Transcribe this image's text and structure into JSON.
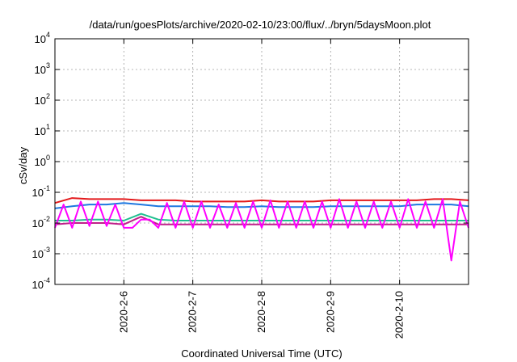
{
  "chart_data": {
    "type": "line",
    "title": "/data/run/goesPlots/archive/2020-02-10/23:00/flux/../bryn/5daysMoon.plot",
    "xlabel": "Coordinated Universal Time (UTC)",
    "ylabel": "cSv/day",
    "yscale": "log",
    "ylim": [
      0.0001,
      10000
    ],
    "ytick_values": [
      0.0001,
      0.001,
      0.01,
      0.1,
      1,
      10,
      100,
      1000,
      10000
    ],
    "ytick_labels": [
      {
        "base": "10",
        "exp": "-4"
      },
      {
        "base": "10",
        "exp": "-3"
      },
      {
        "base": "10",
        "exp": "-2"
      },
      {
        "base": "10",
        "exp": "-1"
      },
      {
        "base": "10",
        "exp": "0"
      },
      {
        "base": "10",
        "exp": "1"
      },
      {
        "base": "10",
        "exp": "2"
      },
      {
        "base": "10",
        "exp": "3"
      },
      {
        "base": "10",
        "exp": "4"
      }
    ],
    "xlim": [
      "2020-02-05T00:00",
      "2020-02-11T00:00"
    ],
    "xticks": [
      {
        "x": "2020-02-06T00:00",
        "label": "2020-2-6"
      },
      {
        "x": "2020-02-07T00:00",
        "label": "2020-2-7"
      },
      {
        "x": "2020-02-08T00:00",
        "label": "2020-2-8"
      },
      {
        "x": "2020-02-09T00:00",
        "label": "2020-2-9"
      },
      {
        "x": "2020-02-10T00:00",
        "label": "2020-2-10"
      }
    ],
    "grid": true,
    "colors": {
      "axis": "#000000",
      "grid": "#a0a0a0"
    },
    "series": [
      {
        "color": "#e31a1c",
        "x": [
          "2020-02-05T00:00",
          "2020-02-05T06:00",
          "2020-02-05T12:00",
          "2020-02-05T18:00",
          "2020-02-06T00:00",
          "2020-02-06T06:00",
          "2020-02-06T12:00",
          "2020-02-06T18:00",
          "2020-02-07T00:00",
          "2020-02-07T06:00",
          "2020-02-07T12:00",
          "2020-02-07T18:00",
          "2020-02-08T00:00",
          "2020-02-08T06:00",
          "2020-02-08T12:00",
          "2020-02-08T18:00",
          "2020-02-09T00:00",
          "2020-02-09T06:00",
          "2020-02-09T12:00",
          "2020-02-09T18:00",
          "2020-02-10T00:00",
          "2020-02-10T06:00",
          "2020-02-10T12:00",
          "2020-02-10T18:00",
          "2020-02-11T00:00"
        ],
        "y": [
          0.045,
          0.065,
          0.06,
          0.06,
          0.06,
          0.055,
          0.055,
          0.055,
          0.05,
          0.05,
          0.05,
          0.05,
          0.055,
          0.05,
          0.05,
          0.05,
          0.055,
          0.055,
          0.055,
          0.055,
          0.055,
          0.055,
          0.06,
          0.06,
          0.055
        ]
      },
      {
        "color": "#1f78e0",
        "x": [
          "2020-02-05T00:00",
          "2020-02-05T06:00",
          "2020-02-05T12:00",
          "2020-02-05T18:00",
          "2020-02-06T00:00",
          "2020-02-06T06:00",
          "2020-02-06T12:00",
          "2020-02-06T18:00",
          "2020-02-07T00:00",
          "2020-02-07T06:00",
          "2020-02-07T12:00",
          "2020-02-07T18:00",
          "2020-02-08T00:00",
          "2020-02-08T06:00",
          "2020-02-08T12:00",
          "2020-02-08T18:00",
          "2020-02-09T00:00",
          "2020-02-09T06:00",
          "2020-02-09T12:00",
          "2020-02-09T18:00",
          "2020-02-10T00:00",
          "2020-02-10T06:00",
          "2020-02-10T12:00",
          "2020-02-10T18:00",
          "2020-02-11T00:00"
        ],
        "y": [
          0.03,
          0.035,
          0.04,
          0.04,
          0.045,
          0.04,
          0.035,
          0.035,
          0.035,
          0.035,
          0.033,
          0.033,
          0.035,
          0.033,
          0.033,
          0.033,
          0.035,
          0.035,
          0.035,
          0.035,
          0.035,
          0.04,
          0.04,
          0.04,
          0.035
        ]
      },
      {
        "color": "#1fbf8f",
        "x": [
          "2020-02-05T00:00",
          "2020-02-05T06:00",
          "2020-02-05T12:00",
          "2020-02-05T18:00",
          "2020-02-06T00:00",
          "2020-02-06T06:00",
          "2020-02-06T12:00",
          "2020-02-06T18:00",
          "2020-02-07T00:00",
          "2020-02-07T06:00",
          "2020-02-07T12:00",
          "2020-02-07T18:00",
          "2020-02-08T00:00",
          "2020-02-08T06:00",
          "2020-02-08T12:00",
          "2020-02-08T18:00",
          "2020-02-09T00:00",
          "2020-02-09T06:00",
          "2020-02-09T12:00",
          "2020-02-09T18:00",
          "2020-02-10T00:00",
          "2020-02-10T06:00",
          "2020-02-10T12:00",
          "2020-02-10T18:00",
          "2020-02-11T00:00"
        ],
        "y": [
          0.012,
          0.012,
          0.013,
          0.013,
          0.012,
          0.02,
          0.013,
          0.012,
          0.012,
          0.012,
          0.012,
          0.012,
          0.012,
          0.012,
          0.012,
          0.012,
          0.012,
          0.012,
          0.012,
          0.012,
          0.012,
          0.012,
          0.012,
          0.012,
          0.012
        ]
      },
      {
        "color": "#c0208a",
        "x": [
          "2020-02-05T00:00",
          "2020-02-05T06:00",
          "2020-02-05T12:00",
          "2020-02-05T18:00",
          "2020-02-06T00:00",
          "2020-02-06T06:00",
          "2020-02-06T12:00",
          "2020-02-06T18:00",
          "2020-02-07T00:00",
          "2020-02-07T06:00",
          "2020-02-07T12:00",
          "2020-02-07T18:00",
          "2020-02-08T00:00",
          "2020-02-08T06:00",
          "2020-02-08T12:00",
          "2020-02-08T18:00",
          "2020-02-09T00:00",
          "2020-02-09T06:00",
          "2020-02-09T12:00",
          "2020-02-09T18:00",
          "2020-02-10T00:00",
          "2020-02-10T06:00",
          "2020-02-10T12:00",
          "2020-02-10T18:00",
          "2020-02-11T00:00"
        ],
        "y": [
          0.009,
          0.01,
          0.01,
          0.01,
          0.009,
          0.016,
          0.009,
          0.009,
          0.009,
          0.009,
          0.009,
          0.009,
          0.009,
          0.009,
          0.009,
          0.009,
          0.009,
          0.009,
          0.009,
          0.009,
          0.009,
          0.009,
          0.009,
          0.009,
          0.009
        ]
      },
      {
        "color": "#ff00ff",
        "x": [
          "2020-02-05T00:00",
          "2020-02-05T03:00",
          "2020-02-05T06:00",
          "2020-02-05T09:00",
          "2020-02-05T12:00",
          "2020-02-05T15:00",
          "2020-02-05T18:00",
          "2020-02-05T21:00",
          "2020-02-06T00:00",
          "2020-02-06T03:00",
          "2020-02-06T06:00",
          "2020-02-06T09:00",
          "2020-02-06T12:00",
          "2020-02-06T15:00",
          "2020-02-06T18:00",
          "2020-02-06T21:00",
          "2020-02-07T00:00",
          "2020-02-07T03:00",
          "2020-02-07T06:00",
          "2020-02-07T09:00",
          "2020-02-07T12:00",
          "2020-02-07T15:00",
          "2020-02-07T18:00",
          "2020-02-07T21:00",
          "2020-02-08T00:00",
          "2020-02-08T03:00",
          "2020-02-08T06:00",
          "2020-02-08T09:00",
          "2020-02-08T12:00",
          "2020-02-08T15:00",
          "2020-02-08T18:00",
          "2020-02-08T21:00",
          "2020-02-09T00:00",
          "2020-02-09T03:00",
          "2020-02-09T06:00",
          "2020-02-09T09:00",
          "2020-02-09T12:00",
          "2020-02-09T15:00",
          "2020-02-09T18:00",
          "2020-02-09T21:00",
          "2020-02-10T00:00",
          "2020-02-10T03:00",
          "2020-02-10T06:00",
          "2020-02-10T09:00",
          "2020-02-10T12:00",
          "2020-02-10T15:00",
          "2020-02-10T18:00",
          "2020-02-10T21:00",
          "2020-02-11T00:00"
        ],
        "y": [
          0.007,
          0.04,
          0.007,
          0.05,
          0.008,
          0.05,
          0.008,
          0.04,
          0.007,
          0.007,
          0.013,
          0.013,
          0.007,
          0.045,
          0.007,
          0.05,
          0.007,
          0.05,
          0.007,
          0.04,
          0.007,
          0.045,
          0.007,
          0.05,
          0.007,
          0.055,
          0.007,
          0.05,
          0.007,
          0.05,
          0.007,
          0.05,
          0.007,
          0.06,
          0.007,
          0.05,
          0.007,
          0.05,
          0.007,
          0.05,
          0.007,
          0.06,
          0.007,
          0.05,
          0.007,
          0.06,
          0.0006,
          0.05,
          0.007
        ]
      }
    ]
  }
}
